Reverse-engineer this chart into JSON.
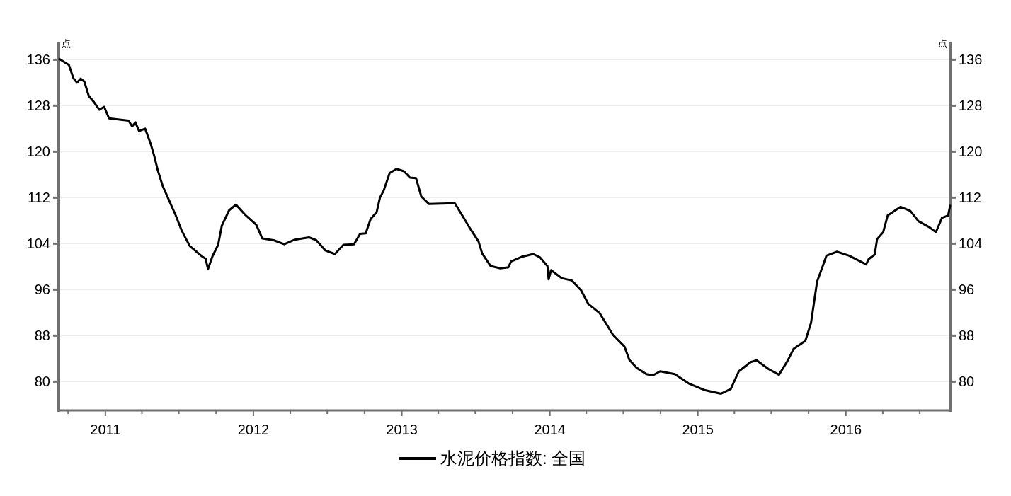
{
  "chart_data": {
    "type": "line",
    "ylabel": "点",
    "y2label": "点",
    "legend": "bottom",
    "grid": "y",
    "line_style": "solid",
    "marker": "none",
    "xlim": [
      "2010-09-08",
      "2016-09-14"
    ],
    "xticks": [
      {
        "value": "2010-10-01",
        "label": null
      },
      {
        "value": "2011-01-01",
        "label": "2011"
      },
      {
        "value": "2011-04-01",
        "label": null
      },
      {
        "value": "2011-07-01",
        "label": null
      },
      {
        "value": "2011-10-01",
        "label": null
      },
      {
        "value": "2012-01-01",
        "label": "2012"
      },
      {
        "value": "2012-04-01",
        "label": null
      },
      {
        "value": "2012-07-01",
        "label": null
      },
      {
        "value": "2012-10-01",
        "label": null
      },
      {
        "value": "2013-01-01",
        "label": "2013"
      },
      {
        "value": "2013-04-01",
        "label": null
      },
      {
        "value": "2013-07-01",
        "label": null
      },
      {
        "value": "2013-10-01",
        "label": null
      },
      {
        "value": "2014-01-01",
        "label": "2014"
      },
      {
        "value": "2014-04-01",
        "label": null
      },
      {
        "value": "2014-07-01",
        "label": null
      },
      {
        "value": "2014-10-01",
        "label": null
      },
      {
        "value": "2015-01-01",
        "label": "2015"
      },
      {
        "value": "2015-04-01",
        "label": null
      },
      {
        "value": "2015-07-01",
        "label": null
      },
      {
        "value": "2015-10-01",
        "label": null
      },
      {
        "value": "2016-01-01",
        "label": "2016"
      },
      {
        "value": "2016-04-01",
        "label": null
      },
      {
        "value": "2016-07-01",
        "label": null
      }
    ],
    "ylim": [
      75,
      139
    ],
    "yticks": [
      80,
      88,
      96,
      104,
      112,
      120,
      128,
      136
    ],
    "y2lim": [
      75,
      139
    ],
    "y2ticks": [
      80,
      88,
      96,
      104,
      112,
      120,
      128,
      136
    ],
    "series": [
      {
        "name": "水泥价格指数: 全国",
        "color": "#000000",
        "x": [
          "2010-09-10",
          "2010-10-03",
          "2010-10-14",
          "2010-10-23",
          "2010-11-01",
          "2010-11-10",
          "2010-11-21",
          "2010-12-03",
          "2010-12-17",
          "2010-12-29",
          "2011-01-10",
          "2011-02-27",
          "2011-03-08",
          "2011-03-16",
          "2011-03-25",
          "2011-04-09",
          "2011-04-23",
          "2011-05-02",
          "2011-05-10",
          "2011-05-22",
          "2011-06-06",
          "2011-06-23",
          "2011-07-08",
          "2011-07-16",
          "2011-07-28",
          "2011-08-27",
          "2011-09-05",
          "2011-09-11",
          "2011-09-22",
          "2011-10-06",
          "2011-10-15",
          "2011-11-02",
          "2011-11-19",
          "2011-12-12",
          "2012-01-08",
          "2012-01-23",
          "2012-02-20",
          "2012-03-17",
          "2012-04-12",
          "2012-05-17",
          "2012-06-04",
          "2012-06-27",
          "2012-07-20",
          "2012-08-10",
          "2012-09-05",
          "2012-09-20",
          "2012-10-04",
          "2012-10-16",
          "2012-10-31",
          "2012-11-08",
          "2012-11-17",
          "2012-12-02",
          "2012-12-19",
          "2013-01-06",
          "2013-01-21",
          "2013-02-05",
          "2013-02-18",
          "2013-03-09",
          "2013-04-24",
          "2013-05-12",
          "2013-05-30",
          "2013-06-16",
          "2013-07-09",
          "2013-07-18",
          "2013-08-08",
          "2013-09-01",
          "2013-09-21",
          "2013-09-27",
          "2013-10-23",
          "2013-11-21",
          "2013-12-08",
          "2013-12-26",
          "2013-12-29",
          "2014-01-04",
          "2014-01-30",
          "2014-02-24",
          "2014-03-19",
          "2014-04-06",
          "2014-05-04",
          "2014-06-06",
          "2014-07-04",
          "2014-07-16",
          "2014-08-03",
          "2014-08-27",
          "2014-09-12",
          "2014-09-30",
          "2014-11-05",
          "2014-12-09",
          "2015-01-19",
          "2015-02-27",
          "2015-03-23",
          "2015-04-12",
          "2015-05-11",
          "2015-05-26",
          "2015-06-24",
          "2015-07-20",
          "2015-08-10",
          "2015-08-25",
          "2015-09-23",
          "2015-10-07",
          "2015-10-22",
          "2015-11-05",
          "2015-11-14",
          "2015-12-10",
          "2016-01-09",
          "2016-02-20",
          "2016-02-26",
          "2016-03-12",
          "2016-03-18",
          "2016-04-02",
          "2016-04-13",
          "2016-05-15",
          "2016-06-08",
          "2016-06-28",
          "2016-07-24",
          "2016-08-10",
          "2016-08-25",
          "2016-09-09",
          "2016-09-14"
        ],
        "values": [
          136.1,
          135.1,
          132.8,
          132.0,
          132.7,
          132.2,
          129.7,
          128.7,
          127.3,
          127.8,
          125.8,
          125.4,
          124.4,
          125.1,
          123.6,
          124.0,
          121.3,
          119.1,
          116.8,
          114.1,
          111.7,
          109.0,
          106.3,
          105.2,
          103.6,
          101.8,
          101.4,
          99.6,
          101.8,
          103.8,
          107.1,
          109.8,
          110.8,
          109.0,
          107.3,
          104.9,
          104.6,
          103.9,
          104.7,
          105.1,
          104.6,
          102.8,
          102.2,
          103.8,
          103.9,
          105.7,
          105.8,
          108.3,
          109.5,
          112.0,
          113.2,
          116.3,
          117.0,
          116.6,
          115.5,
          115.4,
          112.2,
          110.9,
          111.0,
          111.0,
          108.9,
          106.9,
          104.4,
          102.3,
          100.1,
          99.7,
          99.9,
          100.9,
          101.7,
          102.2,
          101.6,
          100.1,
          97.8,
          99.4,
          98.0,
          97.6,
          95.9,
          93.5,
          91.9,
          88.1,
          86.1,
          83.8,
          82.4,
          81.3,
          81.1,
          81.8,
          81.3,
          79.7,
          78.5,
          77.9,
          78.7,
          81.8,
          83.4,
          83.7,
          82.2,
          81.2,
          83.6,
          85.7,
          87.1,
          90.2,
          97.4,
          100.1,
          101.9,
          102.6,
          101.9,
          100.4,
          101.3,
          102.1,
          104.8,
          106.0,
          108.9,
          110.4,
          109.7,
          107.9,
          106.9,
          106.0,
          108.5,
          108.9,
          110.6
        ]
      }
    ]
  }
}
